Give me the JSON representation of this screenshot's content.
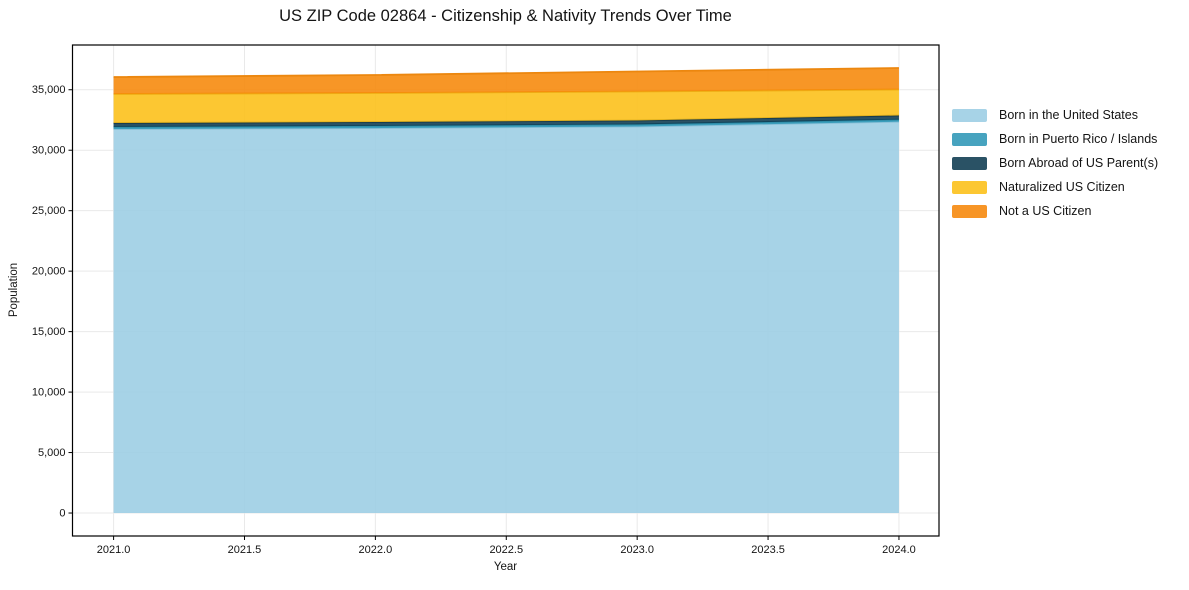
{
  "chart_data": {
    "type": "area",
    "stacked": true,
    "title": "US ZIP Code 02864 - Citizenship & Nativity Trends Over Time",
    "xlabel": "Year",
    "ylabel": "Population",
    "x": [
      2021,
      2022,
      2023,
      2024
    ],
    "series": [
      {
        "name": "Born in the United States",
        "values": [
          31750,
          31830,
          31960,
          32360
        ],
        "fill": "#9bcde4",
        "line": "#89c0d8"
      },
      {
        "name": "Born in Puerto Rico / Islands",
        "values": [
          180,
          180,
          180,
          170
        ],
        "fill": "#2e97b6",
        "line": "#2b8aa6"
      },
      {
        "name": "Born Abroad of US Parent(s)",
        "values": [
          320,
          320,
          315,
          340
        ],
        "fill": "#0d3a50",
        "line": "#173a4c"
      },
      {
        "name": "Naturalized US Citizen",
        "values": [
          2400,
          2400,
          2400,
          2150
        ],
        "fill": "#fcbf16",
        "line": "#eeae15"
      },
      {
        "name": "Not a US Citizen",
        "values": [
          1400,
          1490,
          1655,
          1780
        ],
        "fill": "#f68708",
        "line": "#ec870f"
      }
    ],
    "totals": [
      36050,
      36220,
      36510,
      36800
    ],
    "xticks": [
      2021.0,
      2021.5,
      2022.0,
      2022.5,
      2023.0,
      2023.5,
      2024.0
    ],
    "yticks": [
      0,
      5000,
      10000,
      15000,
      20000,
      25000,
      30000,
      35000
    ],
    "xlim": [
      2020.843,
      2024.153
    ],
    "ylim": [
      -1900,
      38700
    ],
    "grid": true,
    "grid_color": "#e9e9e9",
    "frame_color": "#000000",
    "text_color": "#141414",
    "fill_opacity": 0.88,
    "legend_position": "right"
  }
}
